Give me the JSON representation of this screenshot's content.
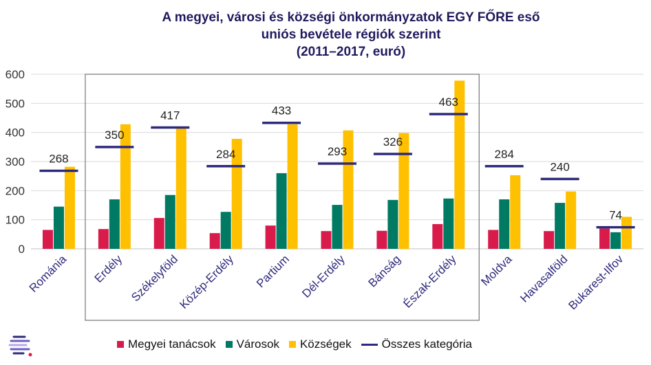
{
  "chart_data": {
    "type": "bar",
    "title_lines": [
      "A megyei, városi és községi önkormányzatok  EGY FŐRE eső",
      "uniós bevétele régiók szerint",
      "(2011–2017, euró)"
    ],
    "categories": [
      "Románia",
      "Erdély",
      "Székelyföld",
      "Közép-Erdély",
      "Partium",
      "Dél-Erdély",
      "Bánság",
      "Észak-Erdély",
      "Moldva",
      "Havasalföld",
      "Bukarest-Ilfov"
    ],
    "series": [
      {
        "name": "Megyei tanácsok",
        "color": "#d81b4a",
        "values": [
          65,
          68,
          106,
          54,
          80,
          61,
          62,
          85,
          65,
          61,
          70
        ]
      },
      {
        "name": "Városok",
        "color": "#007a63",
        "values": [
          145,
          170,
          185,
          127,
          260,
          151,
          168,
          173,
          170,
          158,
          57
        ]
      },
      {
        "name": "Községek",
        "color": "#ffc000",
        "values": [
          282,
          428,
          415,
          378,
          428,
          407,
          398,
          578,
          253,
          197,
          110
        ]
      }
    ],
    "line_series": {
      "name": "Összes kategória",
      "color": "#2e2a7b",
      "values": [
        268,
        350,
        417,
        284,
        433,
        293,
        326,
        463,
        284,
        240,
        74
      ]
    },
    "line_labels": [
      "268",
      "350",
      "417",
      "284",
      "433",
      "293",
      "326",
      "463",
      "284",
      "240",
      "74"
    ],
    "y_ticks": [
      "0",
      "100",
      "200",
      "300",
      "400",
      "500",
      "600"
    ],
    "ylim": [
      0,
      600
    ],
    "grid": true,
    "legend_position": "bottom",
    "highlight_box": {
      "from_category": "Erdély",
      "to_category": "Észak-Erdély"
    }
  }
}
